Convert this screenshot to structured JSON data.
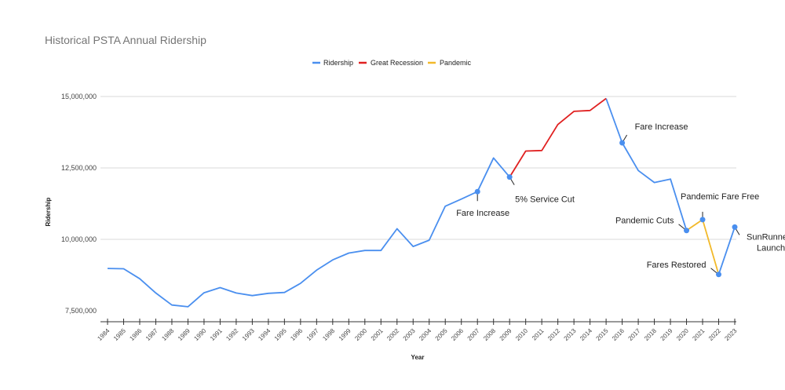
{
  "chart_data": {
    "type": "line",
    "title": "Historical PSTA Annual Ridership",
    "xlabel": "Year",
    "ylabel": "Ridership",
    "ylim": [
      7500000,
      15000000
    ],
    "yticks": [
      "7,500,000",
      "10,000,000",
      "12,500,000",
      "15,000,000"
    ],
    "ytick_values": [
      7500000,
      10000000,
      12500000,
      15000000
    ],
    "grid": "horizontal",
    "legend_position": "top",
    "x": [
      "1984",
      "1985",
      "1986",
      "1987",
      "1988",
      "1989",
      "1990",
      "1991",
      "1992",
      "1993",
      "1994",
      "1995",
      "1996",
      "1997",
      "1998",
      "1999",
      "2000",
      "2001",
      "2002",
      "2003",
      "2004",
      "2005",
      "2006",
      "2007",
      "2008",
      "2009",
      "2010",
      "2011",
      "2012",
      "2013",
      "2014",
      "2015",
      "2016",
      "2017",
      "2018",
      "2019",
      "2020",
      "2021",
      "2022",
      "2023"
    ],
    "series": [
      {
        "name": "Ridership",
        "color": "#4a8fef",
        "points": [
          [
            "1984",
            8980000
          ],
          [
            "1985",
            8970000
          ],
          [
            "1986",
            8620000
          ],
          [
            "1987",
            8120000
          ],
          [
            "1988",
            7700000
          ],
          [
            "1989",
            7640000
          ],
          [
            "1990",
            8130000
          ],
          [
            "1991",
            8310000
          ],
          [
            "1992",
            8120000
          ],
          [
            "1993",
            8030000
          ],
          [
            "1994",
            8110000
          ],
          [
            "1995",
            8140000
          ],
          [
            "1996",
            8460000
          ],
          [
            "1997",
            8920000
          ],
          [
            "1998",
            9280000
          ],
          [
            "1999",
            9520000
          ],
          [
            "2000",
            9610000
          ],
          [
            "2001",
            9610000
          ],
          [
            "2002",
            10370000
          ],
          [
            "2003",
            9750000
          ],
          [
            "2004",
            9970000
          ],
          [
            "2005",
            11160000
          ],
          [
            "2006",
            11410000
          ],
          [
            "2007",
            11670000
          ],
          [
            "2008",
            12850000
          ],
          [
            "2009",
            12180000
          ],
          [
            "2015",
            14930000
          ],
          [
            "2016",
            13380000
          ],
          [
            "2017",
            12410000
          ],
          [
            "2018",
            11990000
          ],
          [
            "2019",
            12110000
          ],
          [
            "2020",
            10310000
          ],
          [
            "2022",
            8770000
          ],
          [
            "2023",
            10430000
          ]
        ]
      },
      {
        "name": "Great Recession",
        "color": "#e02020",
        "points": [
          [
            "2009",
            12180000
          ],
          [
            "2010",
            13090000
          ],
          [
            "2011",
            13110000
          ],
          [
            "2012",
            14020000
          ],
          [
            "2013",
            14480000
          ],
          [
            "2014",
            14510000
          ],
          [
            "2015",
            14930000
          ]
        ]
      },
      {
        "name": "Pandemic",
        "color": "#f2b92a",
        "points": [
          [
            "2020",
            10310000
          ],
          [
            "2021",
            10690000
          ],
          [
            "2022",
            8770000
          ]
        ]
      }
    ],
    "annotations": [
      {
        "year": "2007",
        "value": 11670000,
        "text": "Fare Increase",
        "placement": "below"
      },
      {
        "year": "2009",
        "value": 12180000,
        "text": "5% Service Cut",
        "placement": "below-right"
      },
      {
        "year": "2016",
        "value": 13380000,
        "text": "Fare Increase",
        "placement": "above-right"
      },
      {
        "year": "2020",
        "value": 10310000,
        "text": "Pandemic Cuts",
        "placement": "left"
      },
      {
        "year": "2021",
        "value": 10690000,
        "text": "Pandemic Fare Free",
        "placement": "above"
      },
      {
        "year": "2022",
        "value": 8770000,
        "text": "Fares Restored",
        "placement": "left"
      },
      {
        "year": "2023",
        "value": 10430000,
        "text": "SunRunner Launch",
        "placement": "below-right"
      }
    ]
  }
}
